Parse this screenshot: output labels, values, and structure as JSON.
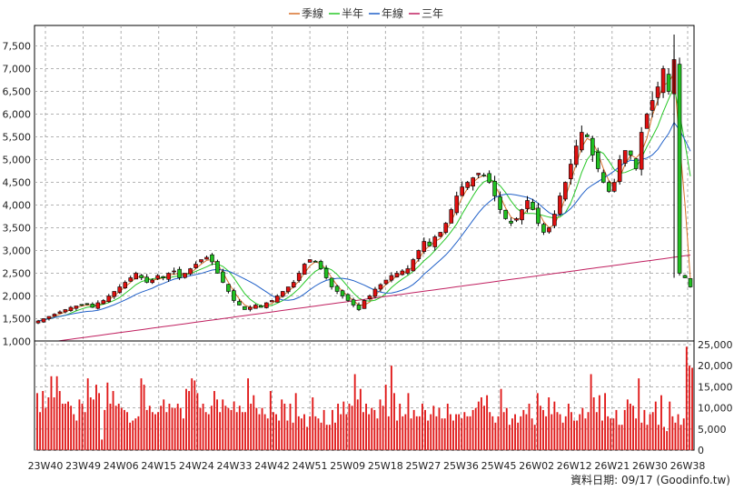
{
  "legend": [
    {
      "label": "季線",
      "color": "#d8702a"
    },
    {
      "label": "半年",
      "color": "#28c828"
    },
    {
      "label": "年線",
      "color": "#2060c8"
    },
    {
      "label": "三年",
      "color": "#c02060"
    }
  ],
  "source_note": "資料日期: 09/17 (Goodinfo.tw)",
  "chart_data": [
    {
      "type": "candlestick",
      "title": "",
      "ylim": [
        850,
        7950
      ],
      "yticks": [
        "1,000",
        "1,500",
        "2,000",
        "2,500",
        "3,000",
        "3,500",
        "4,000",
        "4,500",
        "5,000",
        "5,500",
        "6,000",
        "6,500",
        "7,000",
        "7,500"
      ],
      "ytick_values": [
        1000,
        1500,
        2000,
        2500,
        3000,
        3500,
        4000,
        4500,
        5000,
        5500,
        6000,
        6500,
        7000,
        7500
      ],
      "x_tick_labels": [
        "23W40",
        "23W49",
        "24W06",
        "24W15",
        "24W24",
        "24W33",
        "24W42",
        "24W51",
        "25W09",
        "25W18",
        "25W27",
        "25W36",
        "25W45",
        "26W02",
        "26W12",
        "26W21",
        "26W30",
        "26W38"
      ],
      "close_series": [
        1450,
        1500,
        1550,
        1600,
        1650,
        1700,
        1750,
        1780,
        1800,
        1820,
        1750,
        1850,
        1900,
        2000,
        2100,
        2200,
        2300,
        2400,
        2500,
        2400,
        2300,
        2350,
        2450,
        2400,
        2500,
        2550,
        2400,
        2500,
        2600,
        2700,
        2800,
        2850,
        2750,
        2500,
        2300,
        2100,
        1900,
        1800,
        1700,
        1750,
        1800,
        1750,
        1850,
        1900,
        2000,
        2100,
        2200,
        2300,
        2500,
        2700,
        2800,
        2750,
        2600,
        2400,
        2200,
        2100,
        2000,
        1900,
        1800,
        1700,
        1900,
        2000,
        2150,
        2250,
        2350,
        2450,
        2500,
        2550,
        2600,
        2800,
        3000,
        3200,
        3100,
        3300,
        3400,
        3600,
        3900,
        4200,
        4400,
        4500,
        4600,
        4700,
        4650,
        4500,
        4200,
        3900,
        3700,
        3600,
        3700,
        3900,
        4100,
        3900,
        3600,
        3400,
        3500,
        3800,
        4200,
        4500,
        4900,
        5300,
        5600,
        5500,
        5100,
        4800,
        4500,
        4300,
        4500,
        5000,
        5200,
        5100,
        4800,
        5600,
        6000,
        6300,
        6600,
        7000,
        6500,
        7200,
        2500,
        2400,
        2200
      ]
    },
    {
      "type": "bar",
      "title": "",
      "ylim": [
        0,
        25000
      ],
      "yticks": [
        "0",
        "5,000",
        "10,000",
        "15,000",
        "20,000",
        "25,000"
      ],
      "ytick_values": [
        0,
        5000,
        10000,
        15000,
        20000,
        25000
      ],
      "values": [
        13500,
        9000,
        14000,
        10000,
        12500,
        17500,
        12500,
        17500,
        14000,
        11000,
        11000,
        11500,
        10500,
        8500,
        7000,
        12000,
        11000,
        9000,
        17000,
        12500,
        12000,
        15500,
        13500,
        2500,
        9500,
        16000,
        11000,
        14000,
        10500,
        11000,
        10000,
        9500,
        9000,
        6500,
        7000,
        7500,
        8000,
        17000,
        15500,
        9500,
        10500,
        9000,
        8500,
        9000,
        10500,
        12000,
        9000,
        11000,
        10000,
        10000,
        11000,
        10000,
        7500,
        14500,
        14000,
        17000,
        16500,
        13500,
        10000,
        11000,
        9000,
        8500,
        10500,
        14000,
        12000,
        9000,
        12000,
        10500,
        10000,
        9500,
        11500,
        9000,
        10500,
        9000,
        9000,
        17000,
        11000,
        13000,
        10000,
        8500,
        10000,
        8500,
        7500,
        14000,
        9000,
        8500,
        7000,
        12000,
        11000,
        7000,
        11000,
        6500,
        13500,
        8000,
        7500,
        8500,
        5500,
        8000,
        12500,
        8000,
        7500,
        6500,
        9500,
        6000,
        6000,
        9500,
        6500,
        11000,
        8500,
        11500,
        8500,
        11000,
        10500,
        18000,
        12000,
        14500,
        9000,
        11000,
        8500,
        10000,
        9500,
        7500,
        12000,
        10500,
        15500,
        8000,
        20000,
        13500,
        7000,
        11000,
        8000,
        8500,
        13500,
        7500,
        9500,
        8000,
        8000,
        11000,
        9500,
        7000,
        8500,
        10500,
        8000,
        10000,
        7500,
        7500,
        11000,
        8500,
        7000,
        8500,
        8500,
        7500,
        9000,
        8000,
        8000,
        9500,
        10000,
        11500,
        12500,
        10500,
        13000,
        9000,
        8000,
        6500,
        8000,
        14500,
        9000,
        10000,
        6000,
        7500,
        8500,
        6500,
        8000,
        9500,
        8500,
        11000,
        7500,
        6000,
        13500,
        10500,
        9500,
        8000,
        12500,
        8500,
        11500,
        9000,
        8500,
        6500,
        8000,
        11000,
        9000,
        7000,
        7000,
        8500,
        10000,
        7500,
        9000,
        18000,
        12500,
        9000,
        13000,
        7000,
        13500,
        8000,
        7500,
        7500,
        9500,
        6000,
        6000,
        9500,
        12000,
        11000,
        10500,
        7500,
        17000,
        6500,
        9500,
        6000,
        8500,
        9000,
        11500,
        6000,
        13000,
        5500,
        4500,
        11500,
        8000,
        6500,
        8500,
        6000,
        7500,
        24500,
        20000,
        19500
      ],
      "colors_note": "bars red"
    }
  ]
}
